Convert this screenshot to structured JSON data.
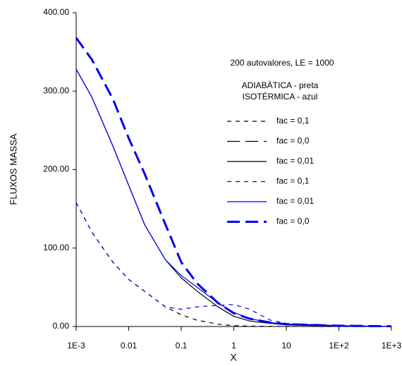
{
  "chart_data": {
    "type": "line",
    "annotations": [
      "200 autovalores, LE = 1000",
      "ADIABÁTICA - preta",
      "ISOTÉRMICA - azul"
    ],
    "x_label": "X",
    "y_label": "FLUXOS MASSA",
    "log_x": true,
    "x": [
      0.001,
      0.002,
      0.005,
      0.01,
      0.02,
      0.05,
      0.1,
      0.2,
      0.5,
      1,
      2,
      5,
      10,
      100,
      1000
    ],
    "series": [
      {
        "name": "fac = 0,1",
        "color": "#000000",
        "linestyle": "dashed",
        "linewidth": "thin",
        "values": [
          158,
          120,
          82,
          60,
          45,
          25,
          15,
          8,
          3,
          1,
          0.5,
          0.2,
          0.1,
          0,
          0
        ]
      },
      {
        "name": "fac = 0,0",
        "color": "#000000",
        "linestyle": "long-dashed",
        "linewidth": "thin",
        "values": [
          368,
          340,
          290,
          240,
          195,
          130,
          82,
          55,
          30,
          17,
          10,
          5,
          3,
          1,
          0.3
        ]
      },
      {
        "name": "fac = 0,01",
        "color": "#000000",
        "linestyle": "solid",
        "linewidth": "thin",
        "values": [
          328,
          292,
          230,
          180,
          130,
          85,
          62,
          45,
          25,
          13,
          7,
          4,
          2,
          0.5,
          0.2
        ]
      },
      {
        "name": "fac = 0,1",
        "color": "#0000ee",
        "linestyle": "dashed",
        "linewidth": "thin",
        "values": [
          158,
          120,
          82,
          60,
          45,
          25,
          22,
          25,
          27,
          28,
          22,
          8,
          4,
          1,
          0.3
        ]
      },
      {
        "name": "fac = 0,01",
        "color": "#0000ee",
        "linestyle": "solid",
        "linewidth": "thin",
        "values": [
          328,
          292,
          230,
          180,
          130,
          85,
          65,
          50,
          30,
          18,
          10,
          5,
          3,
          1,
          0.3
        ]
      },
      {
        "name": "fac = 0,0",
        "color": "#0000ee",
        "linestyle": "long-dashed",
        "linewidth": "thick",
        "values": [
          368,
          340,
          290,
          240,
          195,
          130,
          82,
          55,
          30,
          17,
          10,
          5,
          3,
          1,
          0.3
        ]
      }
    ],
    "xlim": [
      0.001,
      1000
    ],
    "xticks": [
      {
        "value": 0.001,
        "label": "1E-3"
      },
      0.01,
      0.1,
      1,
      10,
      {
        "value": 100,
        "label": "1E+2"
      },
      {
        "value": 1000,
        "label": "1E+3"
      }
    ],
    "ylim": [
      0,
      400
    ],
    "yticks": [
      {
        "value": 0,
        "label": "0.00"
      },
      {
        "value": 100,
        "label": "100.00"
      },
      {
        "value": 200,
        "label": "200.00"
      },
      {
        "value": 300,
        "label": "300.00"
      },
      {
        "value": 400,
        "label": "400.00"
      }
    ]
  }
}
